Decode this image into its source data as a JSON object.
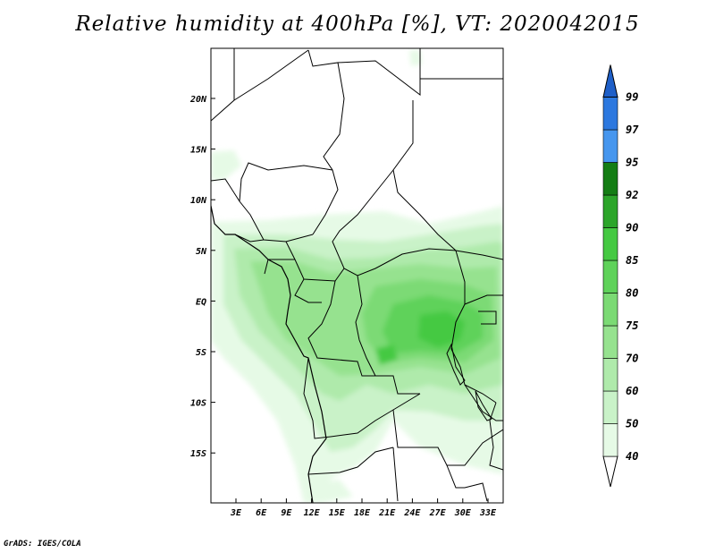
{
  "title": "Relative humidity at 400hPa [%], VT: 2020042015",
  "footer": "GrADS: IGES/COLA",
  "map": {
    "region": "Central Africa",
    "lon_ticks": [
      "3E",
      "6E",
      "9E",
      "12E",
      "15E",
      "18E",
      "21E",
      "24E",
      "27E",
      "30E",
      "33E"
    ],
    "lat_ticks": [
      "20N",
      "15N",
      "10N",
      "5N",
      "EQ",
      "5S",
      "10S",
      "15S"
    ]
  },
  "colorbar": {
    "levels": [
      "40",
      "50",
      "60",
      "70",
      "75",
      "80",
      "85",
      "90",
      "92",
      "95",
      "97",
      "99"
    ],
    "colors": [
      "#ffffff",
      "#e6fae6",
      "#c9f2c8",
      "#afeaab",
      "#96e28f",
      "#7bda74",
      "#5fd25a",
      "#45c942",
      "#2ca52a",
      "#147d14",
      "#4696ee",
      "#2c78df",
      "#1e5fc8"
    ]
  }
}
